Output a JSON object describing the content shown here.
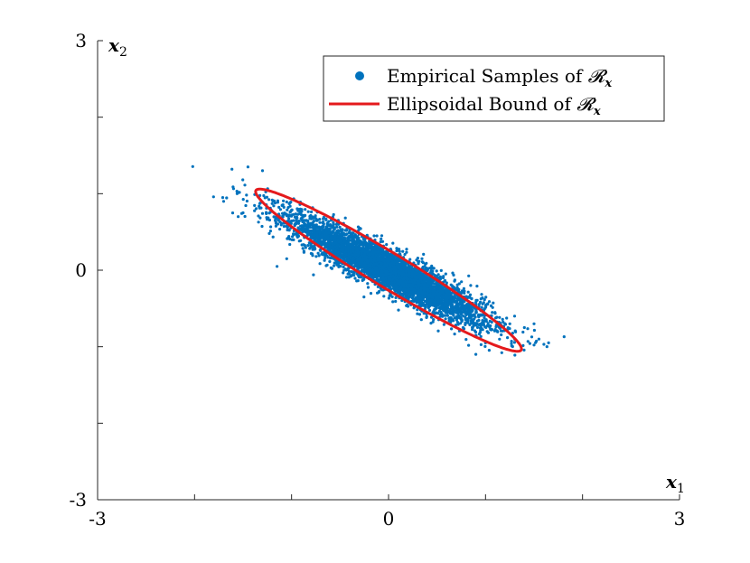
{
  "chart_data": {
    "type": "scatter",
    "title": "",
    "xlabel": "x",
    "xlabel_subscript": "1",
    "ylabel": "x",
    "ylabel_subscript": "2",
    "xlim": [
      -3,
      3
    ],
    "ylim": [
      -3,
      3
    ],
    "x_ticks": [
      -3,
      -2,
      -1,
      0,
      1,
      2,
      3
    ],
    "y_ticks": [
      -3,
      -2,
      -1,
      0,
      1,
      2,
      3
    ],
    "x_tick_labels": {
      "-3": "-3",
      "0": "0",
      "3": "3"
    },
    "y_tick_labels": {
      "-3": "-3",
      "0": "0",
      "3": "3"
    },
    "grid": false,
    "legend_position": "top-right",
    "series": [
      {
        "name": "Empirical Samples of 𝓡x",
        "legend_text": "Empirical Samples of ",
        "legend_math": "𝓡",
        "legend_sub": "x",
        "kind": "scatter",
        "color": "#0072BD",
        "sample_count": 5000,
        "mean": [
          0,
          0
        ],
        "covariance": [
          [
            0.25,
            -0.16
          ],
          [
            -0.16,
            0.12
          ]
        ],
        "outlier_points": [
          [
            -1.71,
            0.95
          ],
          [
            -1.7,
            0.9
          ],
          [
            -1.45,
            1.35
          ],
          [
            -1.3,
            1.3
          ],
          [
            -1.55,
            0.7
          ],
          [
            -1.5,
            0.75
          ],
          [
            1.65,
            -0.95
          ],
          [
            1.55,
            -0.9
          ],
          [
            1.5,
            -0.7
          ],
          [
            1.4,
            -0.75
          ],
          [
            1.3,
            -0.6
          ],
          [
            1.25,
            -0.7
          ],
          [
            0.9,
            -1.1
          ],
          [
            1.0,
            -0.95
          ],
          [
            -0.3,
            0.55
          ],
          [
            -1.15,
            0.05
          ],
          [
            -1.05,
            0.15
          ]
        ]
      },
      {
        "name": "Ellipsoidal Bound of 𝓡x",
        "legend_text": "Ellipsoidal Bound of ",
        "legend_math": "𝓡",
        "legend_sub": "x",
        "kind": "ellipse",
        "color": "#E41A1C",
        "center": [
          0,
          0
        ],
        "semi_axes": [
          1.72,
          0.21
        ],
        "rotation_deg": -37.5
      }
    ]
  }
}
